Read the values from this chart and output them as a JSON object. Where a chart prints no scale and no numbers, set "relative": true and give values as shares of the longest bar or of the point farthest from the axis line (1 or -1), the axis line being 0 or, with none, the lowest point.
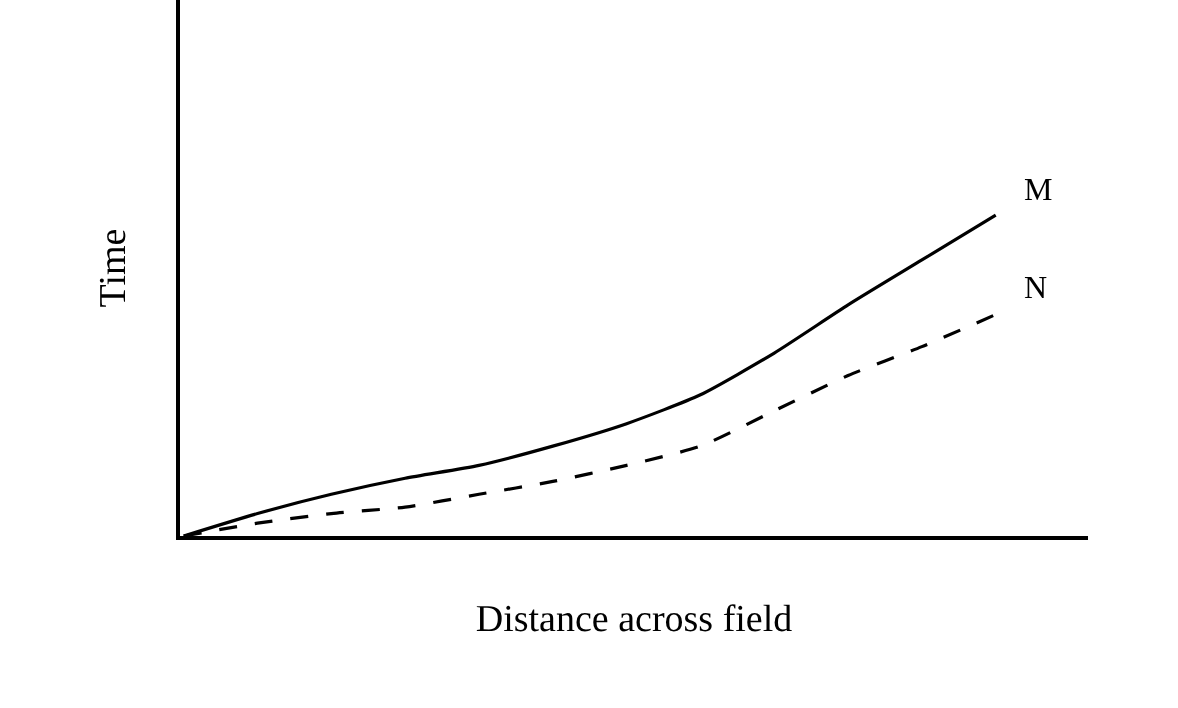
{
  "chart_data": {
    "type": "line",
    "relative": true,
    "xlabel": "Distance across field",
    "ylabel": "Time",
    "categories": [
      null,
      null,
      null,
      null,
      null,
      null,
      null,
      null,
      null,
      null,
      null,
      null,
      null
    ],
    "series": [
      {
        "name": "M",
        "color": "#000000",
        "line_style": "solid",
        "values": [
          0,
          0.07,
          0.13,
          0.18,
          0.22,
          0.28,
          0.35,
          0.44,
          0.57,
          0.72,
          0.86,
          1,
          null
        ]
      },
      {
        "name": "N",
        "color": "#000000",
        "line_style": "dashed",
        "values": [
          0,
          0.04,
          0.07,
          0.09,
          0.13,
          0.17,
          0.22,
          0.28,
          0.39,
          0.5,
          0.59,
          0.69,
          null
        ]
      }
    ],
    "legend": false,
    "marker": "none"
  }
}
